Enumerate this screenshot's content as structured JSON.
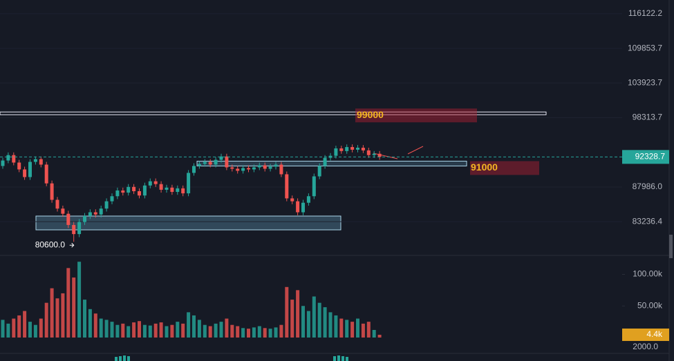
{
  "chart_data": {
    "type": "candlestick",
    "log_scale": true,
    "up_color": "#26a69a",
    "down_color": "#ef5350",
    "ylim": [
      79300,
      118700
    ],
    "yticks": [
      116122.2,
      109853.7,
      103923.7,
      98313.7,
      {
        "value": 87986,
        "label": "87986.0"
      },
      83236.4
    ],
    "open": [
      91000,
      91800,
      92600,
      91500,
      90500,
      89400,
      91600,
      92000,
      91200,
      88500,
      86200,
      85000,
      84300,
      82800,
      81600,
      83200,
      84000,
      84500,
      84200,
      85000,
      86000,
      86700,
      87500,
      87200,
      88000,
      87400,
      86800,
      88200,
      88800,
      88400,
      87600,
      87900,
      87300,
      87800,
      87100,
      90000,
      91000,
      91300,
      91600,
      91200,
      91900,
      92400,
      90800,
      90600,
      90300,
      90700,
      90500,
      90800,
      91100,
      90600,
      90900,
      91200,
      89800,
      86400,
      86000,
      84500,
      85800,
      86700,
      89500,
      91000,
      92200,
      92500,
      93600,
      93200,
      93800,
      93400,
      93700,
      93300,
      92600,
      92800
    ],
    "high": [
      92200,
      93000,
      93000,
      91900,
      90900,
      92000,
      92400,
      92400,
      91600,
      88900,
      86600,
      85400,
      84700,
      83200,
      83600,
      84400,
      84900,
      84900,
      85400,
      86400,
      87100,
      87900,
      87900,
      88400,
      88400,
      87800,
      88600,
      89200,
      89200,
      88800,
      88300,
      88300,
      88200,
      88200,
      90400,
      91400,
      91700,
      92000,
      92000,
      92300,
      92800,
      92800,
      91200,
      91000,
      91100,
      91100,
      91200,
      91500,
      91500,
      91300,
      91600,
      91600,
      90200,
      86800,
      86400,
      86200,
      87100,
      89900,
      91400,
      92600,
      92900,
      94000,
      94000,
      94200,
      94200,
      94100,
      94100,
      93700,
      93200,
      93200
    ],
    "low": [
      90600,
      91400,
      91100,
      90100,
      89000,
      89000,
      91200,
      90800,
      88100,
      85800,
      84600,
      83900,
      82400,
      80600,
      81200,
      82800,
      83600,
      83800,
      83800,
      84600,
      85600,
      86300,
      86800,
      86800,
      87000,
      86400,
      86400,
      87800,
      88000,
      87200,
      87200,
      86900,
      86900,
      86700,
      86700,
      89600,
      90600,
      90900,
      90800,
      90800,
      91500,
      90400,
      90200,
      89900,
      89900,
      90100,
      90100,
      90400,
      90200,
      90200,
      90500,
      89400,
      86000,
      85600,
      84100,
      84100,
      85400,
      86300,
      89100,
      90600,
      91800,
      92100,
      92800,
      92800,
      93000,
      93000,
      92900,
      92200,
      92200,
      91900
    ],
    "close": [
      91800,
      92600,
      91500,
      90500,
      89400,
      91600,
      92000,
      91200,
      88500,
      86200,
      85000,
      84300,
      82800,
      81600,
      83200,
      84000,
      84500,
      84200,
      85000,
      86000,
      86700,
      87500,
      87200,
      88000,
      87400,
      86800,
      88200,
      88800,
      88400,
      87600,
      87900,
      87300,
      87800,
      87100,
      90000,
      91000,
      91300,
      91600,
      91200,
      91900,
      92400,
      90800,
      90600,
      90300,
      90700,
      90500,
      90800,
      91100,
      90600,
      90900,
      91200,
      89800,
      86400,
      86000,
      84500,
      85800,
      86700,
      89500,
      91000,
      92200,
      92500,
      93600,
      93200,
      93800,
      93400,
      93700,
      93300,
      92600,
      92800,
      92328.7
    ],
    "last_price": 92328.7,
    "levels": [
      {
        "value": 99000,
        "color": "#e8e8f4"
      },
      {
        "value": 91000,
        "color": "#a9d4e8"
      }
    ],
    "low_marker": {
      "value": 80600,
      "label": "80600.0"
    },
    "volume": [
      28000,
      22000,
      30000,
      35000,
      42000,
      25000,
      20000,
      30000,
      55000,
      78000,
      62000,
      70000,
      110000,
      95000,
      120000,
      60000,
      45000,
      38000,
      30000,
      28000,
      25000,
      20000,
      22000,
      18000,
      24000,
      26000,
      20000,
      19000,
      22000,
      24000,
      18000,
      20000,
      25000,
      22000,
      40000,
      35000,
      28000,
      20000,
      18000,
      22000,
      25000,
      30000,
      20000,
      18000,
      15000,
      14000,
      16000,
      18000,
      15000,
      14000,
      16000,
      20000,
      80000,
      60000,
      75000,
      50000,
      42000,
      65000,
      55000,
      48000,
      40000,
      35000,
      30000,
      28000,
      25000,
      30000,
      22000,
      25000,
      12000,
      4400
    ],
    "volume_ylim": [
      0,
      128947
    ],
    "volume_yticks": [
      {
        "value": 100000,
        "label": "100.00k"
      },
      {
        "value": 50000,
        "label": "50.00k"
      }
    ],
    "volume_badge": {
      "value": 4400,
      "label": "4.4k"
    },
    "lower_pane_tick": {
      "value": 2000,
      "label": "2000.0"
    }
  }
}
